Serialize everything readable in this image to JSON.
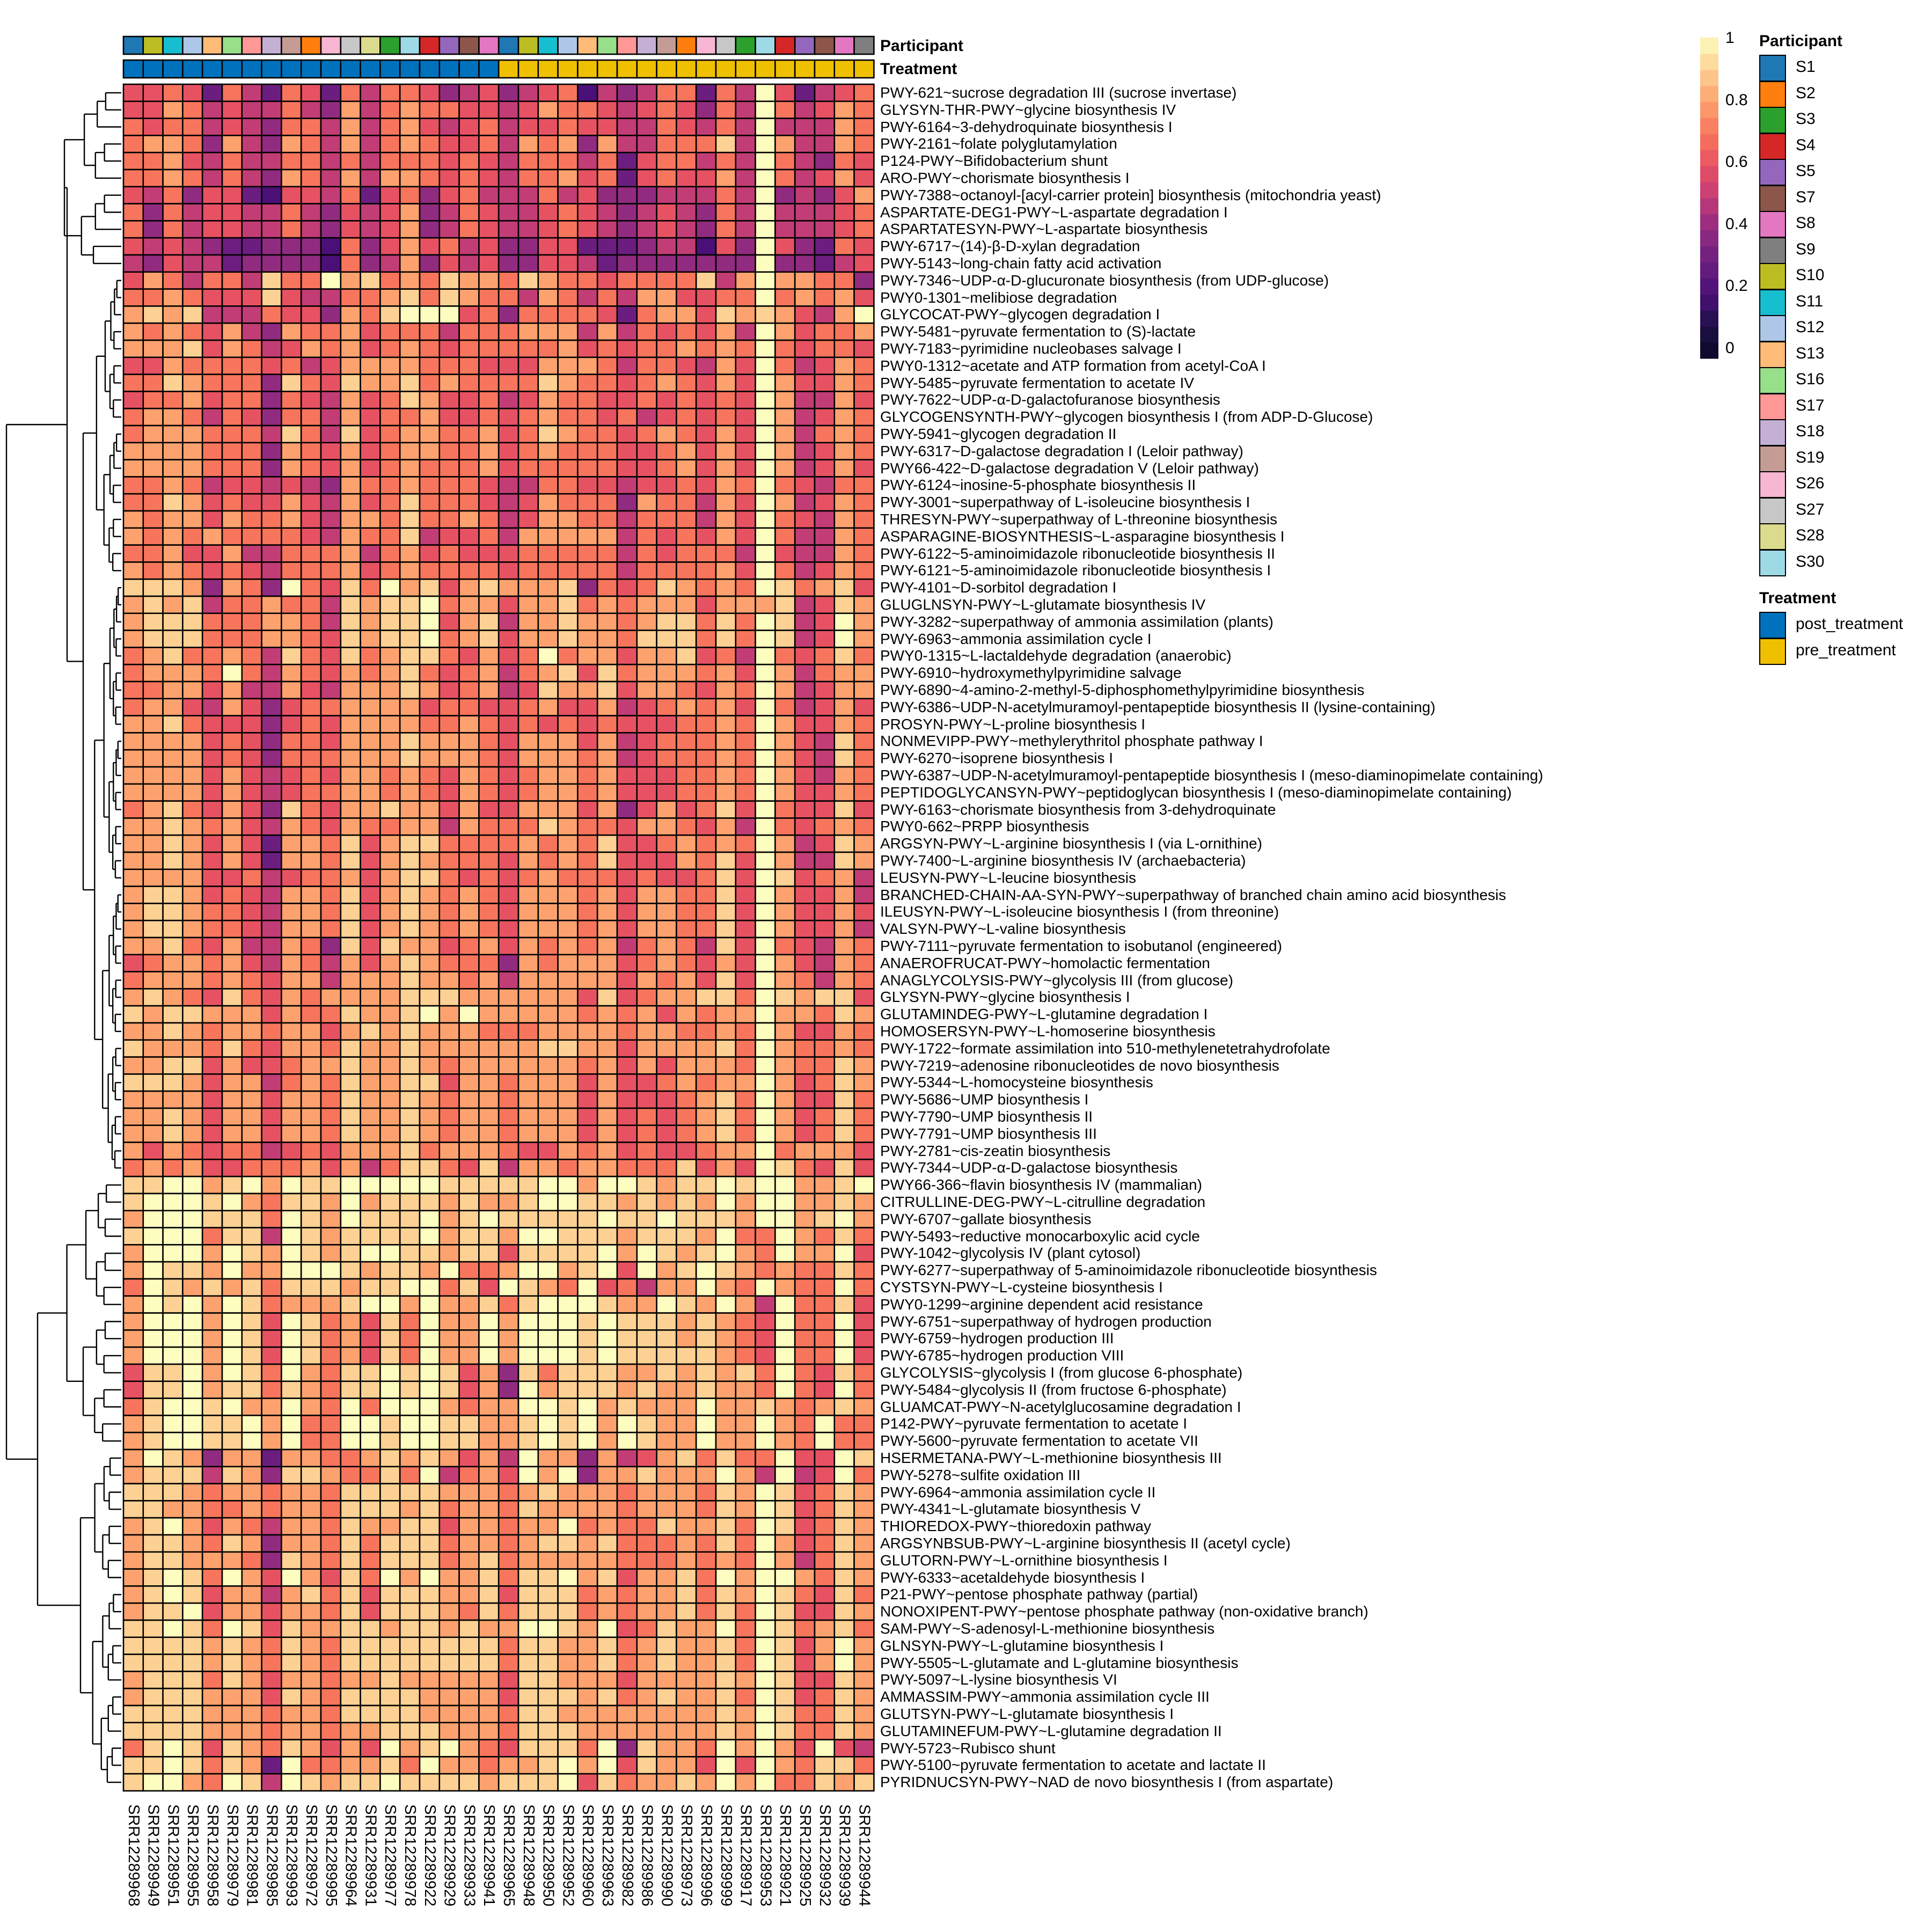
{
  "chart_data": {
    "type": "heatmap",
    "title": "",
    "value_range": [
      0,
      1
    ],
    "value_encoding": "each row string lists 38 cell values in tenths as hex digits (a = 1.0), column order as in columns",
    "colorbar": {
      "ticks": [
        "0",
        "0.2",
        "0.4",
        "0.6",
        "0.8",
        "1"
      ]
    },
    "annotation_titles": {
      "participant": "Participant",
      "treatment": "Treatment"
    },
    "columns": [
      "SRR12289968",
      "SRR12289949",
      "SRR12289951",
      "SRR12289955",
      "SRR12289958",
      "SRR12289979",
      "SRR12289981",
      "SRR12289985",
      "SRR12289993",
      "SRR12289972",
      "SRR12289995",
      "SRR12289964",
      "SRR12289931",
      "SRR12289977",
      "SRR12289978",
      "SRR12289922",
      "SRR12289929",
      "SRR12289933",
      "SRR12289941",
      "SRR12289965",
      "SRR12289948",
      "SRR12289950",
      "SRR12289952",
      "SRR12289960",
      "SRR12289963",
      "SRR12289982",
      "SRR12289986",
      "SRR12289990",
      "SRR12289973",
      "SRR12289996",
      "SRR12289999",
      "SRR12289917",
      "SRR12289953",
      "SRR12289921",
      "SRR12289925",
      "SRR12289932",
      "SRR12289939",
      "SRR12289944"
    ],
    "column_participant": [
      "S1",
      "S10",
      "S11",
      "S12",
      "S13",
      "S16",
      "S17",
      "S18",
      "S19",
      "S2",
      "S26",
      "S27",
      "S28",
      "S3",
      "S30",
      "S4",
      "S5",
      "S7",
      "S8",
      "S1",
      "S10",
      "S11",
      "S12",
      "S13",
      "S16",
      "S17",
      "S18",
      "S19",
      "S2",
      "S26",
      "S27",
      "S3",
      "S30",
      "S4",
      "S5",
      "S7",
      "S8",
      "S9"
    ],
    "column_treatment": [
      "post_treatment",
      "post_treatment",
      "post_treatment",
      "post_treatment",
      "post_treatment",
      "post_treatment",
      "post_treatment",
      "post_treatment",
      "post_treatment",
      "post_treatment",
      "post_treatment",
      "post_treatment",
      "post_treatment",
      "post_treatment",
      "post_treatment",
      "post_treatment",
      "post_treatment",
      "post_treatment",
      "post_treatment",
      "pre_treatment",
      "pre_treatment",
      "pre_treatment",
      "pre_treatment",
      "pre_treatment",
      "pre_treatment",
      "pre_treatment",
      "pre_treatment",
      "pre_treatment",
      "pre_treatment",
      "pre_treatment",
      "pre_treatment",
      "pre_treatment",
      "pre_treatment",
      "pre_treatment",
      "pre_treatment",
      "pre_treatment",
      "pre_treatment",
      "pre_treatment"
    ],
    "rows": [
      {
        "label": "PWY-621~sucrose degradation III (sucrose invertase)",
        "values": "6676375376 3757764564 5672545773 75a63567"
      },
      {
        "label": "GLYSYN-THR-PWY~glycine biosynthesis IV",
        "values": "6687565575 4857877665 6877656764 75a75687"
      },
      {
        "label": "PWY-6164~3-dehydroquinate biosynthesis I",
        "values": "7677565477 5857865675 6676655765 75a55587"
      },
      {
        "label": "PWY-2161~folate polyglutamylation",
        "values": "7887485487 5857876675 8784855777 95a85587"
      },
      {
        "label": "P124-PWY~Bifidobacterium shunt",
        "values": "7786575577 5757776765 7775736775 75a75476"
      },
      {
        "label": "ARO-PWY~chorismate biosynthesis I",
        "values": "7787575487 5858876765 7786736766 85a75686"
      },
      {
        "label": "PWY-7388~octanoyl-[acyl-carrier protein] biosynthesis (mitochondria yeast)",
        "values": "6574663266 5736746755 5756444555 75a45468"
      },
      {
        "label": "ASPARTATE-DEG1-PWY~L-aspartate degradation I",
        "values": "7475665575 4656845765 5676545654 75a55567"
      },
      {
        "label": "ASPARTATESYN-PWY~L-aspartate biosynthesis",
        "values": "7475665575 4656845765 5676545654 75a55567"
      },
      {
        "label": "PWY-6717~(14)-β-D-xylan degradation",
        "values": "6565433444 2746867564 4663334552 64a64376"
      },
      {
        "label": "PWY-5143~long-chain fatty acid activation",
        "values": "5465534444 2745846564 4665344444 44a44356"
      },
      {
        "label": "PWY-7346~UDP-α-D-glucuronate biosynthesis (from UDP-glucose)",
        "values": "6875775977 a897879887 9877677779 58a88774"
      },
      {
        "label": "PWY0-1301~melibiose degradation",
        "values": "7787666965 5778979877 5875758866 77a78786"
      },
      {
        "label": "GLYCOCAT-PWY~glycogen degradation I",
        "values": "8989555766 4879aaa674 7777637886 9898658a"
      },
      {
        "label": "PWY-5481~pyruvate fermentation to (S)-lactate",
        "values": "8787685487 7867775777 8885857676 85a86778"
      },
      {
        "label": "PWY-7183~pyrimidine nucleobases salvage I",
        "values": "8889687568 7867876777 7786767787 87a76776"
      },
      {
        "label": "PWY0-1312~acetate and ATP formation from acetyl-CoA I",
        "values": "6687777675 6888877766 6888757765 86a75687"
      },
      {
        "label": "PWY-5485~pyruvate fermentation to acetate IV",
        "values": "7798777497 6988978777 7987767876 86a86687"
      },
      {
        "label": "PWY-7622~UDP-α-D-galactofuranose biosynthesis",
        "values": "6778677476 5867986675 6877667676 76a85586"
      },
      {
        "label": "GLYCOGENSYNTH-PWY~glycogen biosynthesis I (from ADP-D-Glucose)",
        "values": "7887576477 5867786676 7877675676 76a85687"
      },
      {
        "label": "PWY-5941~glycogen degradation II",
        "values": "7888777597 5967887786 7987767876 86a85787"
      },
      {
        "label": "PWY-6317~D-galactose degradation I (Leloir pathway)",
        "values": "8888777487 6867887786 7877766786 86a85687"
      },
      {
        "label": "PWY66-422~D-galactose degradation V (Leloir pathway)",
        "values": "8888777487 6867877786 7777766786 86a85686"
      },
      {
        "label": "PWY-6124~inosine-5-phosphate biosynthesis II",
        "values": "7787566565 4877877765 5776656676 87a76577"
      },
      {
        "label": "PWY-3001~superpathway of L-isoleucine biosynthesis I",
        "values": "7798676686 5867977765 6877748775 86a85687"
      },
      {
        "label": "THRESYN-PWY~superpathway of L-threonine biosynthesis",
        "values": "8788687786 5887977875 6887757775 86a76587"
      },
      {
        "label": "ASPARAGINE-BIOSYNTHESIS~L-asparagine biosynthesis I",
        "values": "8787877776 5877956675 8888857676 86a75587"
      },
      {
        "label": "PWY-6122~5-aminoimidazole ribonucleotide biosynthesis II",
        "values": "7786685577 7857867666 7777757677 75a65587"
      },
      {
        "label": "PWY-6121~5-aminoimidazole ribonucleotide biosynthesis I",
        "values": "8787676577 7867877776 7777757777 86a75687"
      },
      {
        "label": "PWY-4101~D-sorbitol degradation I",
        "values": "99984874a7 697a896898 8894767987 87a97896"
      },
      {
        "label": "GLUGLNSYN-PWY~L-glutamate biosynthesis IV",
        "values": "8989577877 59899a7886 8897878886 88895698"
      },
      {
        "label": "PWY-3282~superpathway of ammonia assimilation (plants)",
        "values": "8999777887 59899a6895 8898878997 97a956a8"
      },
      {
        "label": "PWY-6963~ammonia assimilation cycle I",
        "values": "8999777887 69899a7896 8898879997 97a956a8"
      },
      {
        "label": "PWY0-1315~L-lactaldehyde degradation (anaerobic)",
        "values": "7897787597 6978997686 7a78868896 75a76797"
      },
      {
        "label": "PWY-6910~hydroxymethylpyrimidine salvage",
        "values": "78887a7587 6878976785 7896978887 86a85788"
      },
      {
        "label": "PWY-6890~4-amino-2-methyl-5-diphosphomethylpyrimidine biosynthesis",
        "values": "7788685586 5888986785 6988968876 87a85688"
      },
      {
        "label": "PWY-6386~UDP-N-acetylmuramoyl-pentapeptide biosynthesis II (lysine-containing)",
        "values": "7886586467 7888867766 7866856787 86a75686"
      },
      {
        "label": "PROSYN-PWY~L-proline biosynthesis I",
        "values": "8897666467 6888877876 7676766677 87a86687"
      },
      {
        "label": "NONMEVIPP-PWY~methylerythritol phosphate pathway I",
        "values": "8888676477 6888988876 8886856777 87a86597"
      },
      {
        "label": "PWY-6270~isoprene biosynthesis I",
        "values": "8888676477 7888988876 8887856777 87a86597"
      },
      {
        "label": "PWY-6387~UDP-N-acetylmuramoyl-pentapeptide biosynthesis I (meso-diaminopimelate containing)",
        "values": "8888686567 6887876876 7887866677 87a86587"
      },
      {
        "label": "PEPTIDOGLYCANSYN-PWY~peptidoglycan biosynthesis I (meso-diaminopimelate containing)",
        "values": "8888686567 7887876876 7887866677 87a86687"
      },
      {
        "label": "PWY-6163~chorismate biosynthesis from 3-dehydroquinate",
        "values": "7897686497 6889886866 8886846867 96a76696"
      },
      {
        "label": "PWY0-662~PRPP biosynthesis",
        "values": "8898786587 6877885877 7987768876 85a76787"
      },
      {
        "label": "ARGSYN-PWY~L-arginine biosynthesis I (via L-ornithine)",
        "values": "8898686388 7968997777 8787966787 87a85698"
      },
      {
        "label": "PWY-7400~L-arginine biosynthesis IV (archaebacteria)",
        "values": "8898686388 7968987776 8787966687 96a85598"
      },
      {
        "label": "LEUSYN-PWY~L-leucine biosynthesis",
        "values": "8888667567 7868997676 7877767667 96a96785"
      },
      {
        "label": "BRANCHED-CHAIN-AA-SYN-PWY~superpathway of branched chain amino acid biosynthesis",
        "values": "8998676588 7968987876 8887868877 96a86685"
      },
      {
        "label": "ILEUSYN-PWY~L-isoleucine biosynthesis I (from threonine)",
        "values": "8998776588 7968987876 8887868877 96a86686"
      },
      {
        "label": "VALSYN-PWY~L-valine biosynthesis",
        "values": "8998776588 7968987876 8887868877 96a86685"
      },
      {
        "label": "PWY-7111~pyruvate fermentation to isobutanol (engineered)",
        "values": "8897685587 4969886786 8787857875 96a76587"
      },
      {
        "label": "ANAEROFRUCAT-PWY~homolactic fermentation",
        "values": "6788786587 5868987774 8788867876 86a86587"
      },
      {
        "label": "ANAGLYCOLYSIS-PWY~glycolysis III (from glucose)",
        "values": "7888787688 5888988785 8888868786 96a87587"
      },
      {
        "label": "GLYSYN-PWY~glycine biosynthesis I",
        "values": "8987697687 8888999888 8886967889 97a98996"
      },
      {
        "label": "GLUTAMINDEG-PWY~L-glutamine degradation I",
        "values": "9899888687 79889a8a88 8887878687 88a88798"
      },
      {
        "label": "HOMOSERSYN-PWY~L-homoserine biosynthesis",
        "values": "8898788788 6898988877 7888878877 87a86687"
      },
      {
        "label": "PWY-1722~formate assimilation into 510-methylenetetrahydrofolate",
        "values": "9888797688 7988988888 8998868888 97a87787"
      },
      {
        "label": "PWY-7219~adenosine ribonucleotides de novo biosynthesis",
        "values": "8899686678 8988987888 8887868688 87a87798"
      },
      {
        "label": "PWY-5344~L-homocysteine biosynthesis",
        "values": "9998688578 7988996887 8886866787 88a86798"
      },
      {
        "label": "PWY-5686~UMP biosynthesis I",
        "values": "8888688688 7988987887 8886866678 97a86697"
      },
      {
        "label": "PWY-7790~UMP biosynthesis II",
        "values": "8898688688 7988987887 8886867678 97a86797"
      },
      {
        "label": "PWY-7791~UMP biosynthesis III",
        "values": "8898688688 7988987887 8886867678 97a86797"
      },
      {
        "label": "PWY-2781~cis-zeatin biosynthesis",
        "values": "8687677567 6888978887 6687867667 88a78886"
      },
      {
        "label": "PWY-7344~UDP-α-D-galactose biosynthesis",
        "values": "7878667778 6857997695 8878877796 86a97696"
      },
      {
        "label": "PWY66-366~flavin biosynthesis IV (mammalian)",
        "values": "99aa89a8a9 9aaaaa9999 9aa8aa9899 a9aa889a"
      },
      {
        "label": "CITRULLINE-DEG-PWY~L-citrulline degradation",
        "values": "9aaa9a8799 8a89998988 9aa9989898 a8aa8898"
      },
      {
        "label": "PWY-6707~gallate biosynthesis",
        "values": "8aaa9997a9 8a999a89a9 9999a99a99 98aa89a8"
      },
      {
        "label": "PWY-5493~reductive monocarboxylic acid cycle",
        "values": "9aaa7995a9 89999a8998 aa99989998 a77a8797"
      },
      {
        "label": "PWY-1042~glycolysis IV (plant cytosol)",
        "values": "8aaa8a98a9 89aa998996 9999a8a989 a87a88a6"
      },
      {
        "label": "PWY-6277~superpathway of 5-aminoimidazole ribonucleotide biosynthesis",
        "values": "8a998a88aa a98998a778 aa89a6a89a 98787797"
      },
      {
        "label": "CYSTSYN-PWY~L-cysteine biosynthesis I",
        "values": "7a98989799 9899aa796a 987a67588a 87a877a7"
      },
      {
        "label": "PWY0-1299~arginine dependent acid resistance",
        "values": "8a9a8a9788 89aa8a8897 9aaa988a98 a85a7796"
      },
      {
        "label": "PWY-6751~superpathway of hydrogen production",
        "values": "8aaa8a96a9 78697a88a8 aaa9a99989 876a77a6"
      },
      {
        "label": "PWY-6759~hydrogen production III",
        "values": "8aaa8a96a9 78697a88a8 aaa9a99989 876a77a6"
      },
      {
        "label": "PWY-6785~hydrogen production VIII",
        "values": "8aaa8a96a9 78697a88a8 aaa9a99999 876a77a6"
      },
      {
        "label": "GLYCOLYSIS~glycolysis I (from glucose 6-phosphate)",
        "values": "699a8a97a8 799a9a9684 9799988989 897a7697"
      },
      {
        "label": "PWY-5484~glycolysis II (from fructose 6-phosphate)",
        "values": "699a899798 799a9a9684 a899989889 887a76a7"
      },
      {
        "label": "GLUAMCAT-PWY~N-acetylglucosamine degradation I",
        "values": "79aa9a88a8 7a7aaa8788 aa9a89888a 88987898"
      },
      {
        "label": "P142-PWY~pyruvate fermentation to acetate I",
        "values": "89aa99a8a7 7aa9aa9988 9a9a8a988a 88a87a77"
      },
      {
        "label": "PWY-5600~pyruvate fermentation to acetate VII",
        "values": "89aa99a8a7 7aa9aa9988 9a9a8a988a 88a87a77"
      },
      {
        "label": "HSERMETANA-PWY~L-methionine biosynthesis III",
        "values": "8a98488388 7789898685 a884856897 977a66a9"
      },
      {
        "label": "PWY-5278~sulfite oxidation III",
        "values": "8999598499 87797a5786 a8a4889888 a85a56a7"
      },
      {
        "label": "PWY-6964~ammonia assimilation cycle II",
        "values": "9998788788 7999998887 8988878887 98a96798"
      },
      {
        "label": "PWY-4341~L-glutamate biosynthesis V",
        "values": "9988778788 7999897887 9888878887 98a96798"
      },
      {
        "label": "THIOREDOX-PWY~thioredoxin pathway",
        "values": "89a8687588 7988996887 88a7877988 97a96798"
      },
      {
        "label": "ARGSYNBSUB-PWY~L-arginine biosynthesis II (acetyl cycle)",
        "values": "8998798488 7979997887 8998977787 97a86798"
      },
      {
        "label": "GLUTORN-PWY~L-ornithine biosynthesis I",
        "values": "8998887498 7979997897 8888877787 87a85798"
      },
      {
        "label": "PWY-6333~acetaldehyde biosynthesis I",
        "values": "89a97a86a8 697a8a8897 99a8968897 a8aa8798"
      },
      {
        "label": "P21-PWY~pentose phosphate pathway (partial)",
        "values": "89a9688589 7969998896 9997878897 98a97697"
      },
      {
        "label": "NONOXIPENT-PWY~pentose phosphate pathway (non-oxidative branch)",
        "values": "899a688688 7969998797 9997878897 97a96698"
      },
      {
        "label": "SAM-PWY~S-adenosyl-L-methionine biosynthesis",
        "values": "99a97a9698 8998998988 aa98a67988 a7a97897"
      },
      {
        "label": "GLNSYN-PWY~L-glutamine biosynthesis I",
        "values": "9999898798 7999999997 9988978988 97a968a8"
      },
      {
        "label": "PWY-5505~L-glutamate and L-glutamine biosynthesis",
        "values": "9999898798 7999999997 9988978988 97a968a8"
      },
      {
        "label": "PWY-5097~L-lysine biosynthesis VI",
        "values": "8999798688 7889888886 9988868888 98a96698"
      },
      {
        "label": "AMMASSIM-PWY~ammonia assimilation cycle III",
        "values": "8999888698 7999988886 9998978988 97a96798"
      },
      {
        "label": "GLUTSYN-PWY~L-glutamate biosynthesis I",
        "values": "9999888788 7999988887 9988888888 98a97798"
      },
      {
        "label": "GLUTAMINEFUM-PWY~L-glutamine degradation II",
        "values": "9999888788 7889998887 9998888888 98a97798"
      },
      {
        "label": "PWY-5723~Rubisco shunt",
        "values": "79a9698798 686a89a876 9997a49887 a8a86a65"
      },
      {
        "label": "PWY-5100~pyruvate fermentation to acetate and lactate II",
        "values": "99a97983a7 78897a8878 89a8a69886 a6a87997"
      },
      {
        "label": "PYRIDNUCSYN-PWY~NAD de novo biosynthesis I (from aspartate)",
        "values": "9aa87a95a9 899a999989 99a6978898 a8a77989"
      }
    ]
  },
  "legend": {
    "participant": {
      "title": "Participant",
      "items": [
        {
          "label": "S1",
          "color": "#1f77b4"
        },
        {
          "label": "S2",
          "color": "#ff7f0e"
        },
        {
          "label": "S3",
          "color": "#2ca02c"
        },
        {
          "label": "S4",
          "color": "#d62728"
        },
        {
          "label": "S5",
          "color": "#9467bd"
        },
        {
          "label": "S7",
          "color": "#8c564b"
        },
        {
          "label": "S8",
          "color": "#e377c2"
        },
        {
          "label": "S9",
          "color": "#7f7f7f"
        },
        {
          "label": "S10",
          "color": "#bcbd22"
        },
        {
          "label": "S11",
          "color": "#17becf"
        },
        {
          "label": "S12",
          "color": "#aec7e8"
        },
        {
          "label": "S13",
          "color": "#ffbb78"
        },
        {
          "label": "S16",
          "color": "#98df8a"
        },
        {
          "label": "S17",
          "color": "#ff9896"
        },
        {
          "label": "S18",
          "color": "#c5b0d5"
        },
        {
          "label": "S19",
          "color": "#c49c94"
        },
        {
          "label": "S26",
          "color": "#f7b6d2"
        },
        {
          "label": "S27",
          "color": "#c7c7c7"
        },
        {
          "label": "S28",
          "color": "#dbdb8d"
        },
        {
          "label": "S30",
          "color": "#9edae5"
        }
      ]
    },
    "treatment": {
      "title": "Treatment",
      "items": [
        {
          "label": "post_treatment",
          "color": "#0072bd"
        },
        {
          "label": "pre_treatment",
          "color": "#efc000"
        }
      ]
    }
  }
}
